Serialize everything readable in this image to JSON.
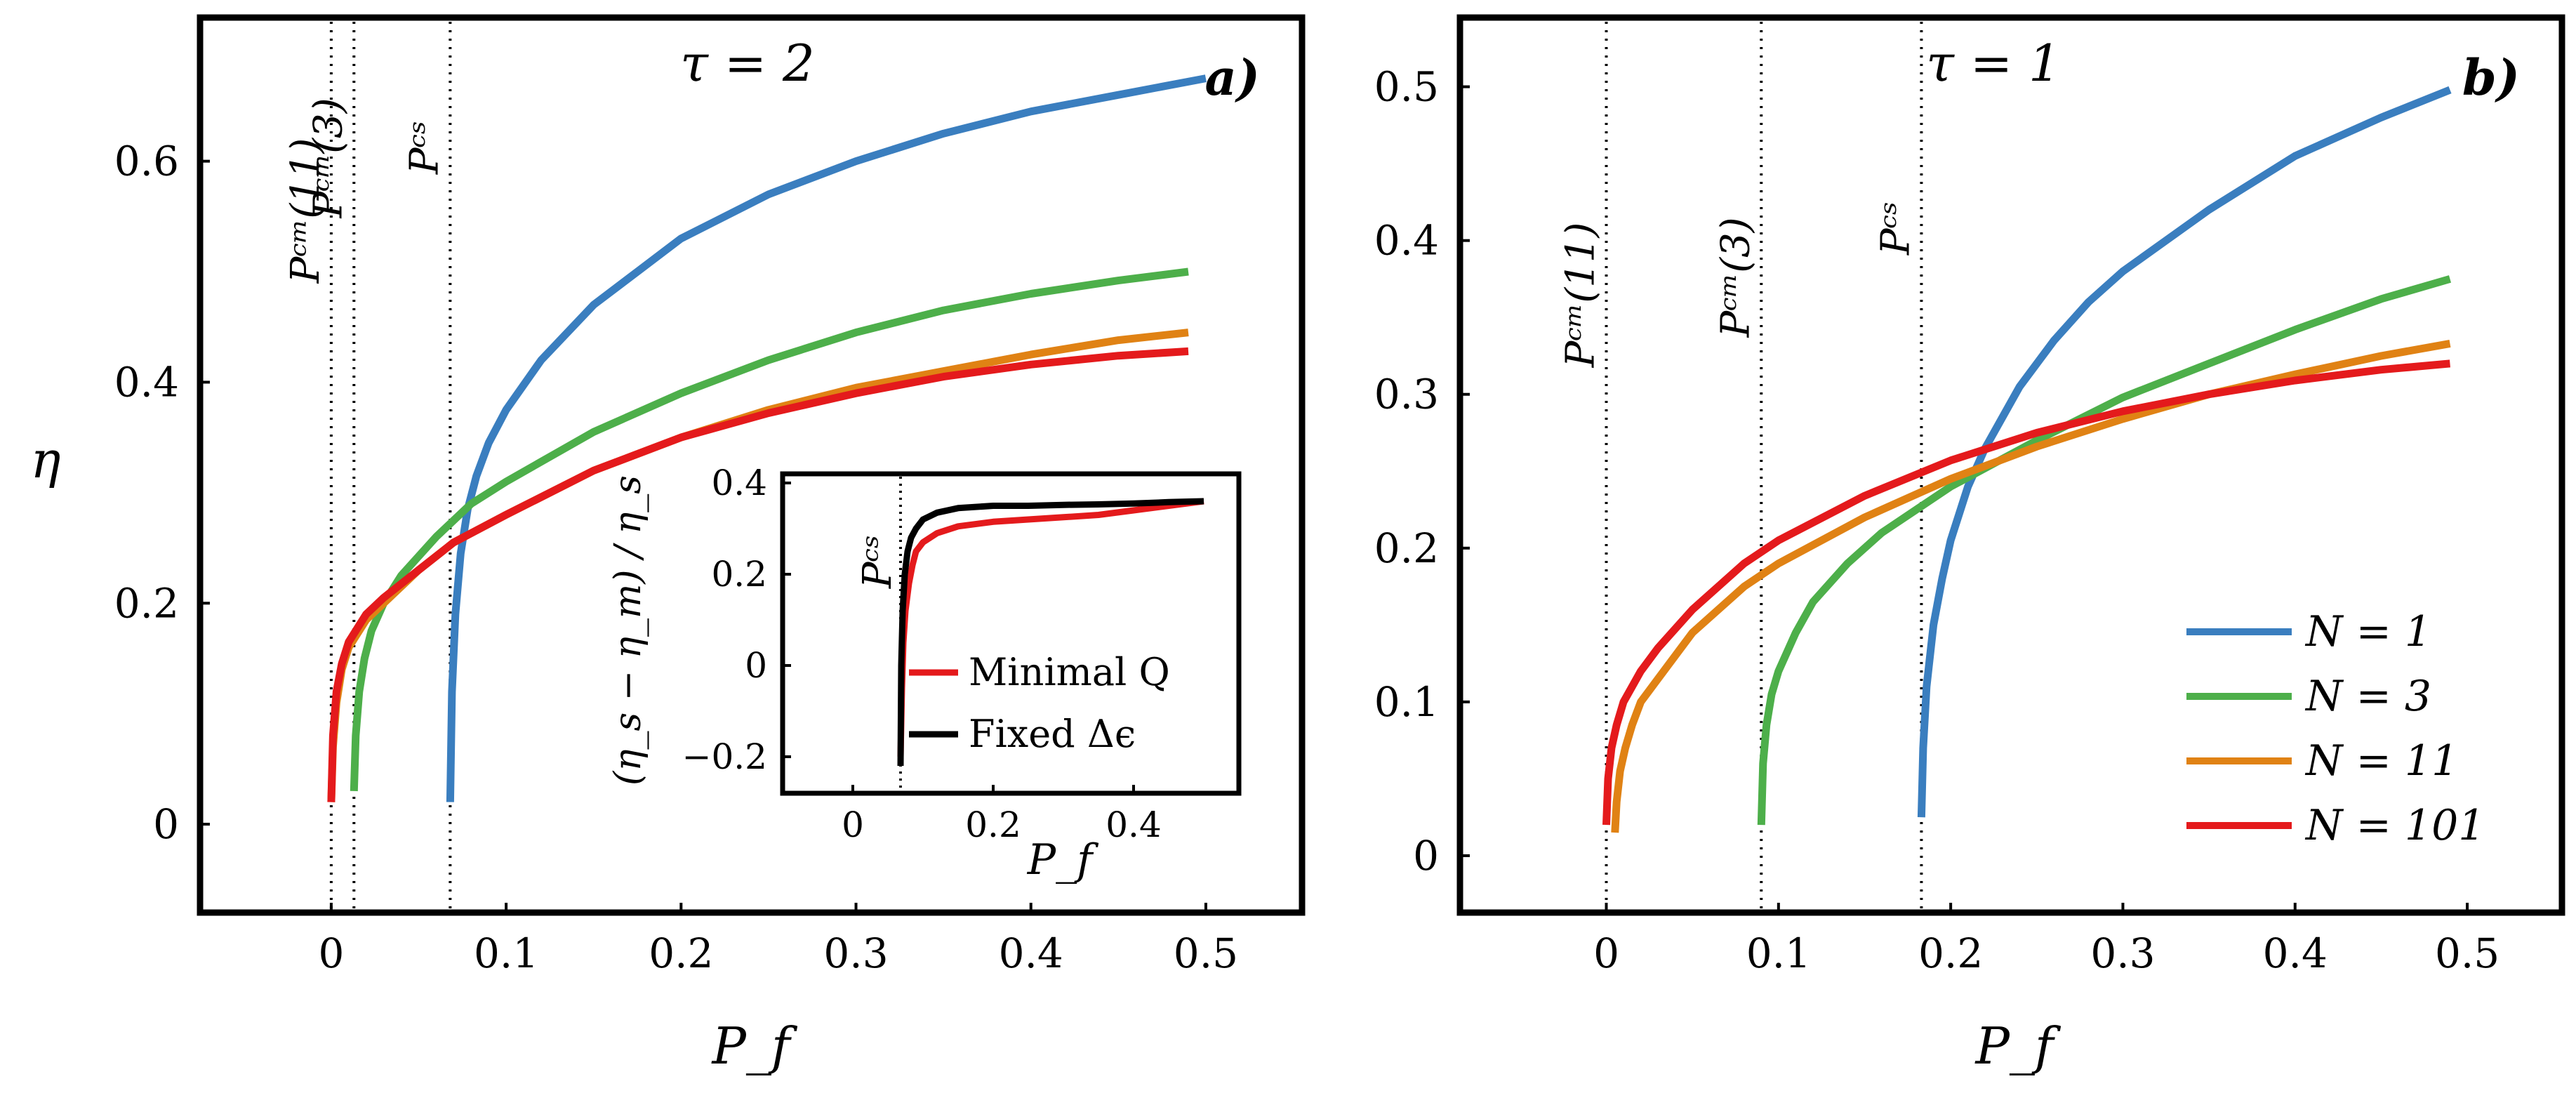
{
  "chart_data": [
    {
      "id": "a",
      "type": "line",
      "panel_label": "a)",
      "title": "τ = 2",
      "xlabel": "P_f",
      "ylabel": "η",
      "xlim": [
        -0.075,
        0.555
      ],
      "ylim": [
        -0.08,
        0.73
      ],
      "xticks": [
        0,
        0.1,
        0.2,
        0.3,
        0.4,
        0.5
      ],
      "yticks": [
        0,
        0.2,
        0.4,
        0.6
      ],
      "xtick_labels": [
        "0",
        "0.1",
        "0.2",
        "0.3",
        "0.4",
        "0.5"
      ],
      "ytick_labels": [
        "0",
        "0.2",
        "0.4",
        "0.6"
      ],
      "vlines": [
        {
          "x": 0.0,
          "label": "Pᶜᵐ(11)"
        },
        {
          "x": 0.013,
          "label": "Pᶜᵐ(3)"
        },
        {
          "x": 0.068,
          "label": "Pᶜˢ"
        }
      ],
      "series": [
        {
          "name": "N = 1",
          "color": "#3a7ebf",
          "x": [
            0.068,
            0.069,
            0.071,
            0.074,
            0.078,
            0.083,
            0.09,
            0.1,
            0.12,
            0.15,
            0.2,
            0.25,
            0.3,
            0.35,
            0.4,
            0.45,
            0.5
          ],
          "y": [
            0.02,
            0.12,
            0.19,
            0.245,
            0.285,
            0.315,
            0.345,
            0.375,
            0.42,
            0.47,
            0.53,
            0.57,
            0.6,
            0.625,
            0.645,
            0.66,
            0.675
          ]
        },
        {
          "name": "N = 3",
          "color": "#4daf4a",
          "x": [
            0.013,
            0.014,
            0.016,
            0.019,
            0.023,
            0.03,
            0.04,
            0.06,
            0.08,
            0.1,
            0.15,
            0.2,
            0.25,
            0.3,
            0.35,
            0.4,
            0.45,
            0.49
          ],
          "y": [
            0.03,
            0.08,
            0.12,
            0.15,
            0.175,
            0.2,
            0.225,
            0.26,
            0.29,
            0.31,
            0.355,
            0.39,
            0.42,
            0.445,
            0.465,
            0.48,
            0.492,
            0.5
          ]
        },
        {
          "name": "N = 11",
          "color": "#e08214",
          "x": [
            0.0,
            0.001,
            0.003,
            0.006,
            0.01,
            0.02,
            0.03,
            0.05,
            0.07,
            0.1,
            0.15,
            0.2,
            0.25,
            0.3,
            0.35,
            0.4,
            0.45,
            0.49
          ],
          "y": [
            0.02,
            0.07,
            0.11,
            0.14,
            0.16,
            0.185,
            0.2,
            0.23,
            0.255,
            0.28,
            0.32,
            0.35,
            0.375,
            0.395,
            0.41,
            0.425,
            0.438,
            0.445
          ]
        },
        {
          "name": "N = 101",
          "color": "#e41a1c",
          "x": [
            0.0,
            0.001,
            0.003,
            0.006,
            0.01,
            0.02,
            0.03,
            0.05,
            0.07,
            0.1,
            0.15,
            0.2,
            0.25,
            0.3,
            0.35,
            0.4,
            0.45,
            0.49
          ],
          "y": [
            0.02,
            0.08,
            0.12,
            0.145,
            0.165,
            0.19,
            0.205,
            0.23,
            0.255,
            0.28,
            0.32,
            0.35,
            0.372,
            0.39,
            0.405,
            0.416,
            0.424,
            0.428
          ]
        }
      ],
      "inset": {
        "xlabel": "P_f",
        "ylabel": "(η_s − η_m) / η_s",
        "xlim": [
          -0.1,
          0.55
        ],
        "ylim": [
          -0.28,
          0.42
        ],
        "xticks": [
          0,
          0.2,
          0.4
        ],
        "yticks": [
          -0.2,
          0,
          0.2,
          0.4
        ],
        "xtick_labels": [
          "0",
          "0.2",
          "0.4"
        ],
        "ytick_labels": [
          "−0.2",
          "0",
          "0.2",
          "0.4"
        ],
        "vline": {
          "x": 0.068,
          "label": "Pᶜˢ"
        },
        "legend": [
          "Minimal Q",
          "Fixed Δϵ"
        ],
        "series": [
          {
            "name": "Minimal Q",
            "color": "#e41a1c",
            "x": [
              0.068,
              0.07,
              0.072,
              0.075,
              0.08,
              0.085,
              0.09,
              0.1,
              0.12,
              0.15,
              0.2,
              0.25,
              0.3,
              0.35,
              0.4,
              0.45,
              0.5
            ],
            "y": [
              -0.2,
              -0.05,
              0.05,
              0.12,
              0.18,
              0.22,
              0.25,
              0.27,
              0.29,
              0.305,
              0.315,
              0.32,
              0.325,
              0.33,
              0.34,
              0.35,
              0.36
            ]
          },
          {
            "name": "Fixed Δϵ",
            "color": "#000000",
            "x": [
              0.068,
              0.069,
              0.071,
              0.074,
              0.078,
              0.083,
              0.09,
              0.1,
              0.12,
              0.15,
              0.2,
              0.25,
              0.3,
              0.35,
              0.4,
              0.45,
              0.5
            ],
            "y": [
              -0.22,
              0.0,
              0.12,
              0.2,
              0.25,
              0.28,
              0.3,
              0.32,
              0.335,
              0.345,
              0.35,
              0.35,
              0.352,
              0.353,
              0.355,
              0.358,
              0.36
            ]
          }
        ]
      }
    },
    {
      "id": "b",
      "type": "line",
      "panel_label": "b)",
      "title": "τ = 1",
      "xlabel": "P_f",
      "ylabel": "",
      "xlim": [
        -0.085,
        0.555
      ],
      "ylim": [
        -0.037,
        0.545
      ],
      "xticks": [
        0,
        0.1,
        0.2,
        0.3,
        0.4,
        0.5
      ],
      "yticks": [
        0,
        0.1,
        0.2,
        0.3,
        0.4,
        0.5
      ],
      "xtick_labels": [
        "0",
        "0.1",
        "0.2",
        "0.3",
        "0.4",
        "0.5"
      ],
      "ytick_labels": [
        "0",
        "0.1",
        "0.2",
        "0.3",
        "0.4",
        "0.5"
      ],
      "vlines": [
        {
          "x": 0.0,
          "label": "Pᶜᵐ(11)"
        },
        {
          "x": 0.09,
          "label": "Pᶜᵐ(3)"
        },
        {
          "x": 0.183,
          "label": "Pᶜˢ"
        }
      ],
      "legend": [
        "N = 1",
        "N = 3",
        "N = 11",
        "N = 101"
      ],
      "series": [
        {
          "name": "N = 1",
          "color": "#3a7ebf",
          "x": [
            0.183,
            0.184,
            0.186,
            0.19,
            0.195,
            0.2,
            0.21,
            0.22,
            0.24,
            0.26,
            0.28,
            0.3,
            0.35,
            0.4,
            0.45,
            0.49
          ],
          "y": [
            0.025,
            0.07,
            0.11,
            0.15,
            0.18,
            0.205,
            0.24,
            0.265,
            0.305,
            0.335,
            0.36,
            0.38,
            0.42,
            0.455,
            0.48,
            0.498
          ]
        },
        {
          "name": "N = 3",
          "color": "#4daf4a",
          "x": [
            0.09,
            0.091,
            0.093,
            0.096,
            0.1,
            0.11,
            0.12,
            0.14,
            0.16,
            0.18,
            0.2,
            0.25,
            0.3,
            0.35,
            0.4,
            0.45,
            0.49
          ],
          "y": [
            0.02,
            0.06,
            0.085,
            0.105,
            0.12,
            0.145,
            0.165,
            0.19,
            0.21,
            0.225,
            0.24,
            0.27,
            0.298,
            0.32,
            0.342,
            0.362,
            0.375
          ]
        },
        {
          "name": "N = 11",
          "color": "#e08214",
          "x": [
            0.005,
            0.006,
            0.008,
            0.011,
            0.015,
            0.02,
            0.03,
            0.05,
            0.08,
            0.1,
            0.15,
            0.2,
            0.25,
            0.3,
            0.35,
            0.4,
            0.45,
            0.49
          ],
          "y": [
            0.015,
            0.035,
            0.055,
            0.07,
            0.085,
            0.1,
            0.115,
            0.145,
            0.175,
            0.19,
            0.22,
            0.245,
            0.266,
            0.284,
            0.3,
            0.313,
            0.325,
            0.333
          ]
        },
        {
          "name": "N = 101",
          "color": "#e41a1c",
          "x": [
            0.0,
            0.001,
            0.003,
            0.006,
            0.01,
            0.02,
            0.03,
            0.05,
            0.08,
            0.1,
            0.15,
            0.2,
            0.25,
            0.3,
            0.35,
            0.4,
            0.45,
            0.49
          ],
          "y": [
            0.02,
            0.05,
            0.07,
            0.085,
            0.1,
            0.12,
            0.135,
            0.16,
            0.19,
            0.205,
            0.234,
            0.257,
            0.275,
            0.289,
            0.3,
            0.309,
            0.316,
            0.32
          ]
        }
      ]
    }
  ]
}
